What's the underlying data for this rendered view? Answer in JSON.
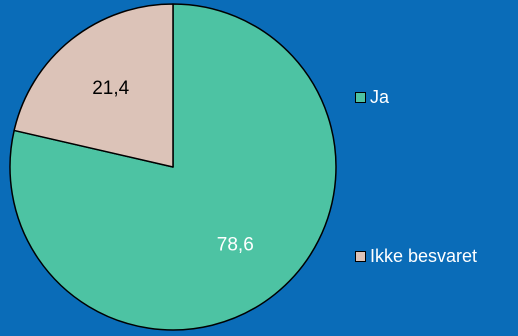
{
  "colors": {
    "background": "#0a6cb8",
    "outline": "#000000",
    "label_text": "#ffffff",
    "legend_text": "#ffffff"
  },
  "chart_data": {
    "type": "pie",
    "slices": [
      {
        "label": "Ja",
        "value": 78.6,
        "display": "78,6",
        "color": "#4dc3a3"
      },
      {
        "label": "Ikke besvaret",
        "value": 21.4,
        "display": "21,4",
        "color": "#dcc3b8"
      }
    ],
    "start_angle_deg": 0,
    "direction": "clockwise",
    "legend_position": "right",
    "title": ""
  }
}
